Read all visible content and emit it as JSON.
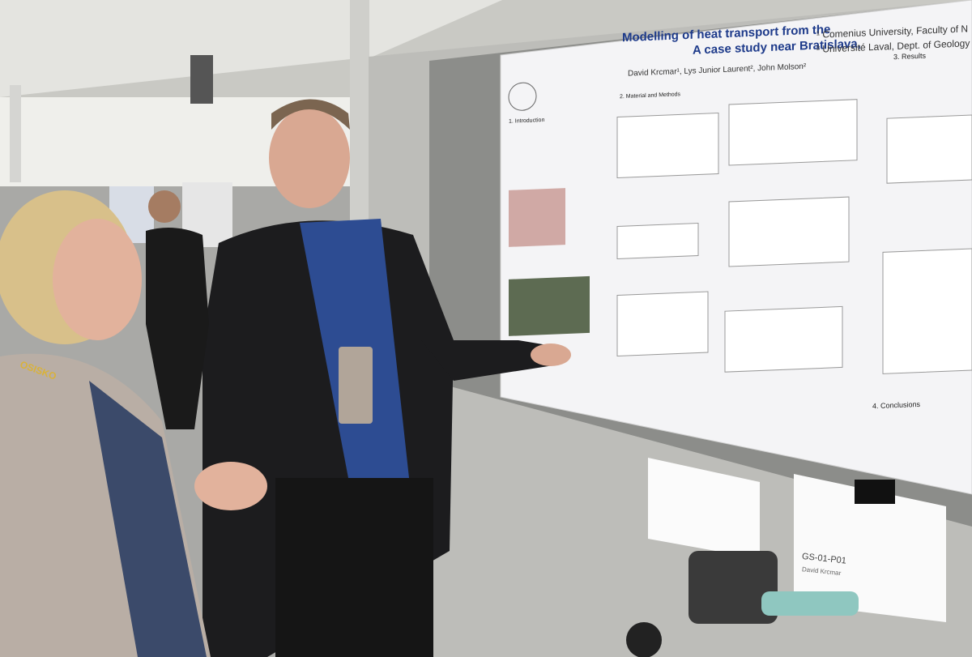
{
  "poster": {
    "title_line1": "Modelling of heat transport from the",
    "title_line2": "A case study near Bratislava,",
    "authors": "David Krcmar¹, Lys Junior Laurent², John Molson²",
    "affiliation1": "¹ Comenius University, Faculty of N",
    "affiliation2": "² Université Laval, Dept. of Geology",
    "sections": [
      "1. Introduction",
      "2. Material and Methods",
      "3. Results",
      "4. Conclusions"
    ]
  },
  "sign": {
    "code": "GS-01-P01",
    "name": "David Krcmar"
  },
  "lanyard": "OSISKO"
}
